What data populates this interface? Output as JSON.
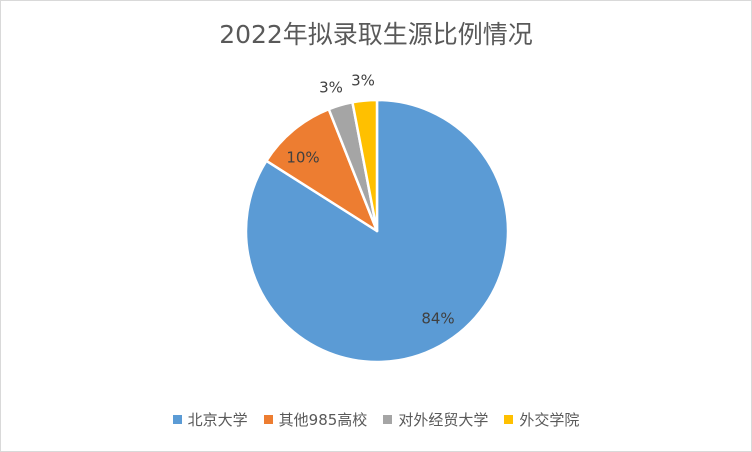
{
  "chart_data": {
    "type": "pie",
    "title": "2022年拟录取生源比例情况",
    "categories": [
      "北京大学",
      "其他985高校",
      "对外经贸大学",
      "外交学院"
    ],
    "values": [
      84,
      10,
      3,
      3
    ],
    "data_labels": [
      "84%",
      "10%",
      "3%",
      "3%"
    ],
    "colors": [
      "#5b9bd5",
      "#ed7d31",
      "#a5a5a5",
      "#ffc000"
    ],
    "legend_position": "bottom",
    "start_angle": "12 o'clock",
    "direction": "clockwise"
  }
}
